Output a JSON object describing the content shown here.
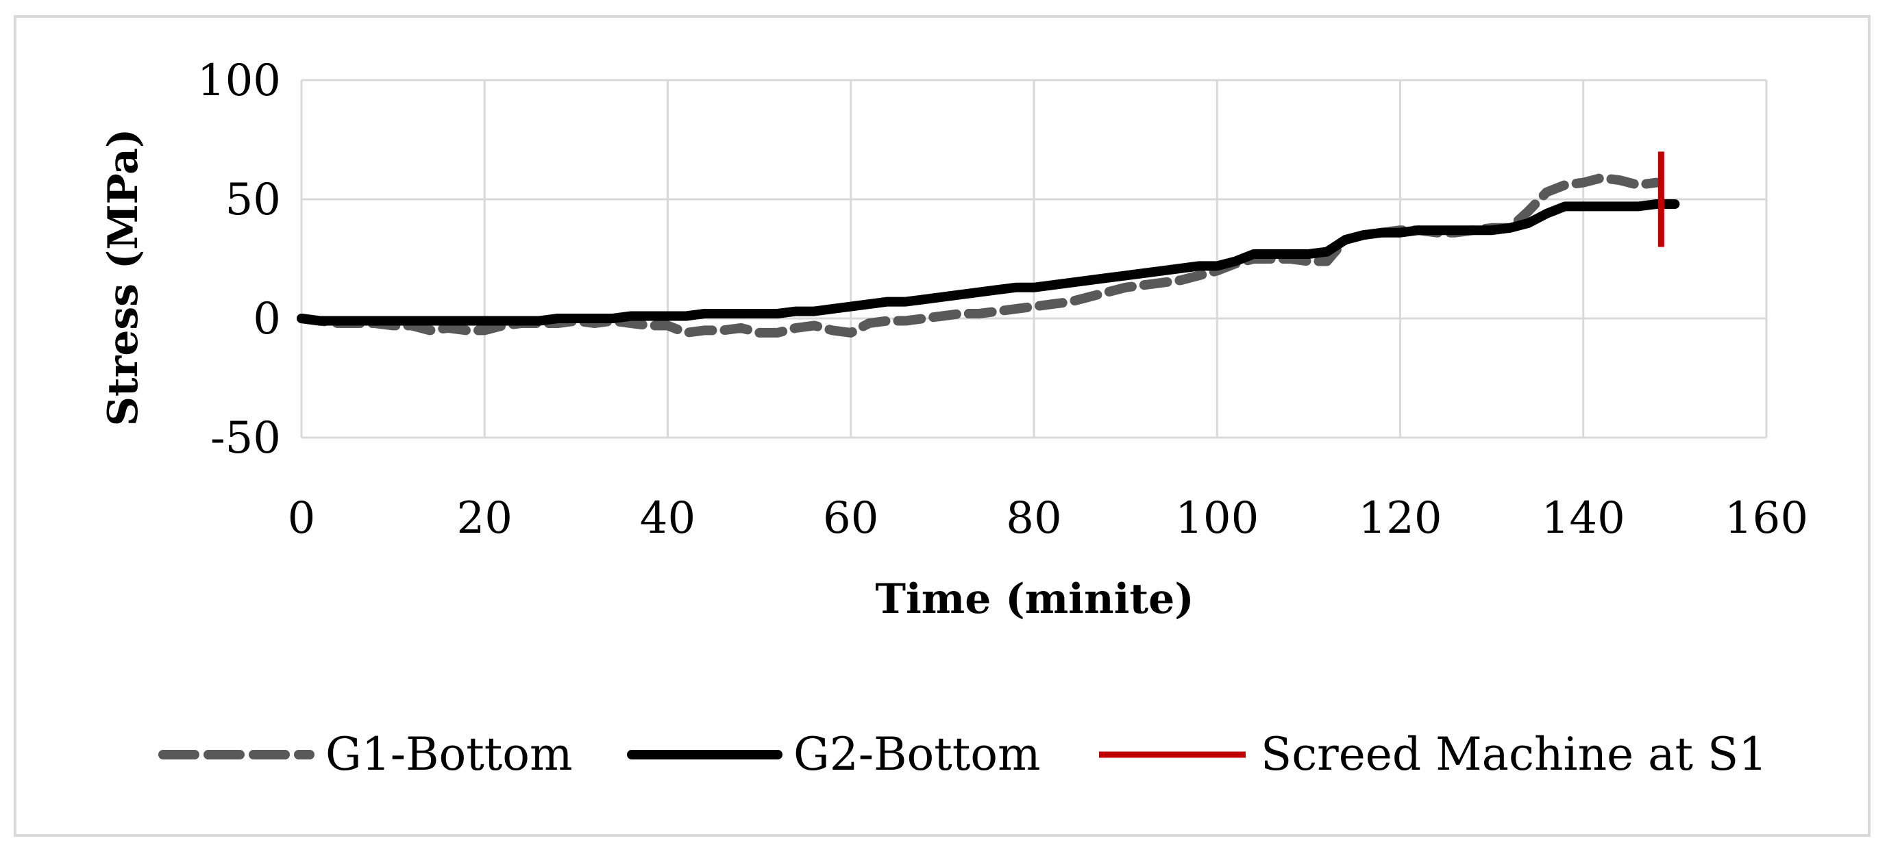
{
  "chart_data": {
    "type": "line",
    "title": "",
    "xlabel": "Time (minite)",
    "ylabel": "Stress (MPa)",
    "xlim": [
      0,
      160
    ],
    "ylim": [
      -50,
      100
    ],
    "x_ticks": [
      "0",
      "20",
      "40",
      "60",
      "80",
      "100",
      "120",
      "140",
      "160"
    ],
    "y_ticks": [
      "-50",
      "0",
      "50",
      "100"
    ],
    "grid": true,
    "legend_position": "bottom",
    "series": [
      {
        "name": "G1-Bottom",
        "style": "dashed",
        "color": "#595959",
        "points": [
          [
            0,
            0
          ],
          [
            2,
            -1
          ],
          [
            4,
            -2
          ],
          [
            6,
            -2
          ],
          [
            8,
            -2
          ],
          [
            10,
            -3
          ],
          [
            12,
            -3
          ],
          [
            14,
            -5
          ],
          [
            16,
            -4
          ],
          [
            18,
            -5
          ],
          [
            20,
            -5
          ],
          [
            22,
            -3
          ],
          [
            24,
            -2
          ],
          [
            26,
            -2
          ],
          [
            28,
            -2
          ],
          [
            30,
            -1
          ],
          [
            32,
            -2
          ],
          [
            34,
            -1
          ],
          [
            36,
            -2
          ],
          [
            38,
            -3
          ],
          [
            40,
            -3
          ],
          [
            42,
            -6
          ],
          [
            44,
            -5
          ],
          [
            46,
            -5
          ],
          [
            48,
            -4
          ],
          [
            50,
            -6
          ],
          [
            52,
            -6
          ],
          [
            54,
            -4
          ],
          [
            56,
            -3
          ],
          [
            58,
            -5
          ],
          [
            60,
            -6
          ],
          [
            62,
            -2
          ],
          [
            64,
            -1
          ],
          [
            66,
            -1
          ],
          [
            68,
            0
          ],
          [
            70,
            1
          ],
          [
            72,
            2
          ],
          [
            74,
            2
          ],
          [
            76,
            3
          ],
          [
            78,
            4
          ],
          [
            80,
            5
          ],
          [
            82,
            6
          ],
          [
            84,
            7
          ],
          [
            86,
            9
          ],
          [
            88,
            11
          ],
          [
            90,
            13
          ],
          [
            92,
            14
          ],
          [
            94,
            15
          ],
          [
            96,
            16
          ],
          [
            98,
            18
          ],
          [
            100,
            20
          ],
          [
            102,
            23
          ],
          [
            104,
            25
          ],
          [
            106,
            25
          ],
          [
            108,
            25
          ],
          [
            110,
            24
          ],
          [
            112,
            24
          ],
          [
            114,
            33
          ],
          [
            116,
            35
          ],
          [
            118,
            36
          ],
          [
            120,
            37
          ],
          [
            122,
            37
          ],
          [
            124,
            36
          ],
          [
            126,
            36
          ],
          [
            128,
            37
          ],
          [
            130,
            38
          ],
          [
            132,
            38
          ],
          [
            134,
            45
          ],
          [
            136,
            53
          ],
          [
            138,
            56
          ],
          [
            140,
            57
          ],
          [
            142,
            59
          ],
          [
            144,
            58
          ],
          [
            146,
            56
          ],
          [
            148,
            57
          ]
        ]
      },
      {
        "name": "G2-Bottom",
        "style": "solid",
        "color": "#000000",
        "points": [
          [
            0,
            0
          ],
          [
            2,
            -1
          ],
          [
            4,
            -1
          ],
          [
            6,
            -1
          ],
          [
            8,
            -1
          ],
          [
            10,
            -1
          ],
          [
            12,
            -1
          ],
          [
            14,
            -1
          ],
          [
            16,
            -1
          ],
          [
            18,
            -1
          ],
          [
            20,
            -1
          ],
          [
            22,
            -1
          ],
          [
            24,
            -1
          ],
          [
            26,
            -1
          ],
          [
            28,
            0
          ],
          [
            30,
            0
          ],
          [
            32,
            0
          ],
          [
            34,
            0
          ],
          [
            36,
            1
          ],
          [
            38,
            1
          ],
          [
            40,
            1
          ],
          [
            42,
            1
          ],
          [
            44,
            2
          ],
          [
            46,
            2
          ],
          [
            48,
            2
          ],
          [
            50,
            2
          ],
          [
            52,
            2
          ],
          [
            54,
            3
          ],
          [
            56,
            3
          ],
          [
            58,
            4
          ],
          [
            60,
            5
          ],
          [
            62,
            6
          ],
          [
            64,
            7
          ],
          [
            66,
            7
          ],
          [
            68,
            8
          ],
          [
            70,
            9
          ],
          [
            72,
            10
          ],
          [
            74,
            11
          ],
          [
            76,
            12
          ],
          [
            78,
            13
          ],
          [
            80,
            13
          ],
          [
            82,
            14
          ],
          [
            84,
            15
          ],
          [
            86,
            16
          ],
          [
            88,
            17
          ],
          [
            90,
            18
          ],
          [
            92,
            19
          ],
          [
            94,
            20
          ],
          [
            96,
            21
          ],
          [
            98,
            22
          ],
          [
            100,
            22
          ],
          [
            102,
            24
          ],
          [
            104,
            27
          ],
          [
            106,
            27
          ],
          [
            108,
            27
          ],
          [
            110,
            27
          ],
          [
            112,
            28
          ],
          [
            114,
            33
          ],
          [
            116,
            35
          ],
          [
            118,
            36
          ],
          [
            120,
            36
          ],
          [
            122,
            37
          ],
          [
            124,
            37
          ],
          [
            126,
            37
          ],
          [
            128,
            37
          ],
          [
            130,
            37
          ],
          [
            132,
            38
          ],
          [
            134,
            40
          ],
          [
            136,
            44
          ],
          [
            138,
            47
          ],
          [
            140,
            47
          ],
          [
            142,
            47
          ],
          [
            144,
            47
          ],
          [
            146,
            47
          ],
          [
            148,
            48
          ],
          [
            150,
            48
          ]
        ]
      },
      {
        "name": "Screed Machine at S1",
        "style": "solid",
        "color": "#c00000",
        "points": [
          [
            148.5,
            30
          ],
          [
            148.5,
            70
          ]
        ]
      }
    ]
  }
}
